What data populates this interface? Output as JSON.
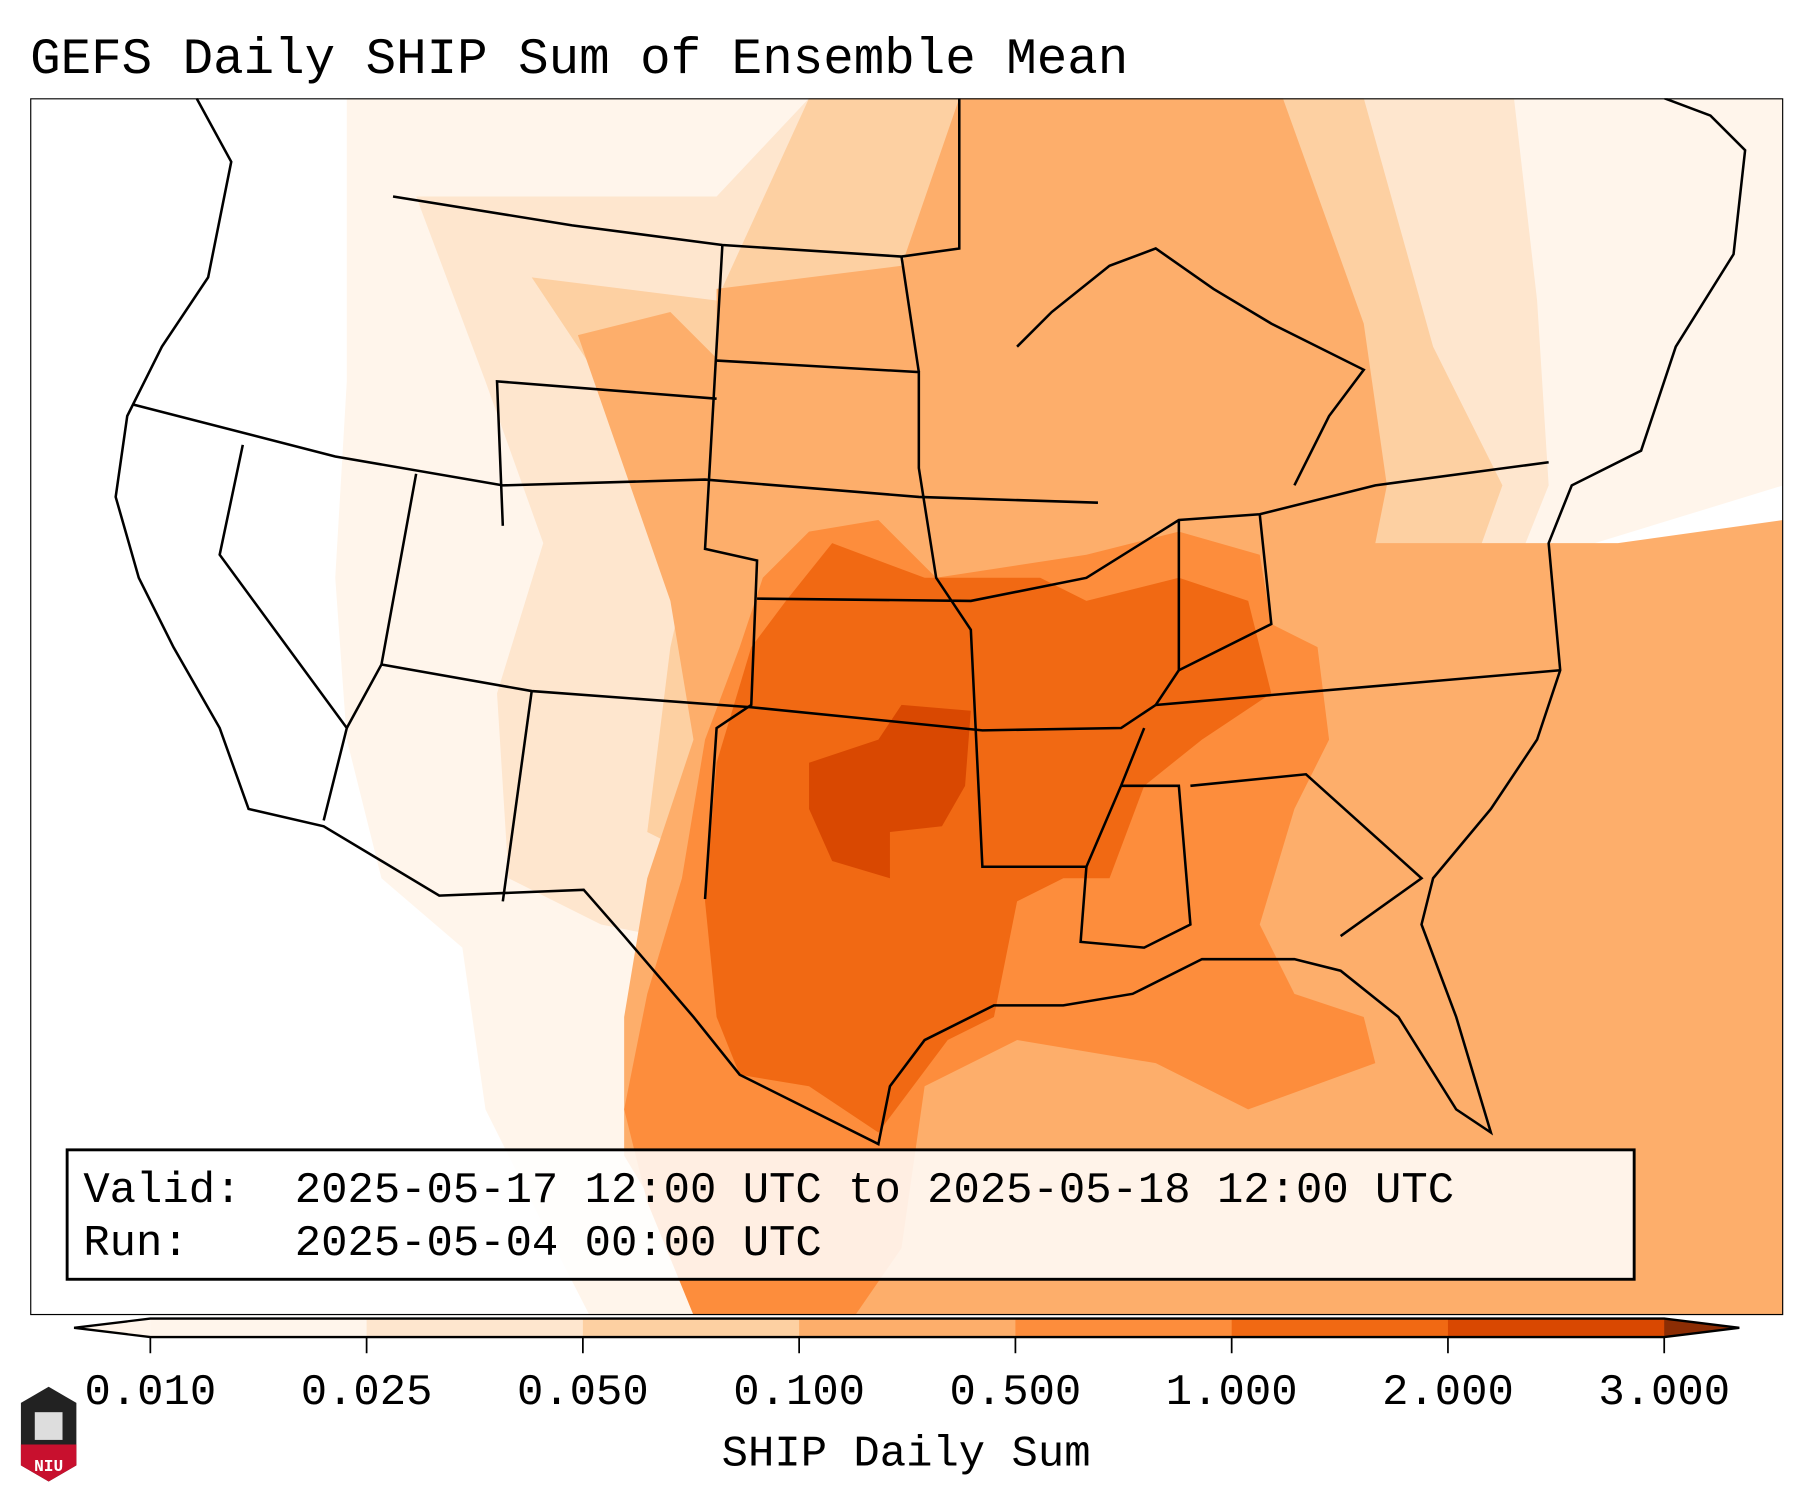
{
  "title": "GEFS Daily SHIP Sum of Ensemble Mean",
  "info_box": {
    "valid_label": "Valid:",
    "valid_value": "2025-05-17 12:00 UTC to 2025-05-18 12:00 UTC",
    "run_label": "Run:",
    "run_value": "2025-05-04 00:00 UTC"
  },
  "colorbar": {
    "label": "SHIP Daily Sum",
    "ticks": [
      "0.010",
      "0.025",
      "0.050",
      "0.100",
      "0.500",
      "1.000",
      "2.000",
      "3.000"
    ],
    "colors": [
      "#fff5eb",
      "#fee6ce",
      "#fdd0a2",
      "#fdae6b",
      "#fd8d3c",
      "#f16913",
      "#d94801",
      "#8c2d04"
    ]
  },
  "logo": {
    "text": "NIU",
    "color": "#c8102e"
  }
}
